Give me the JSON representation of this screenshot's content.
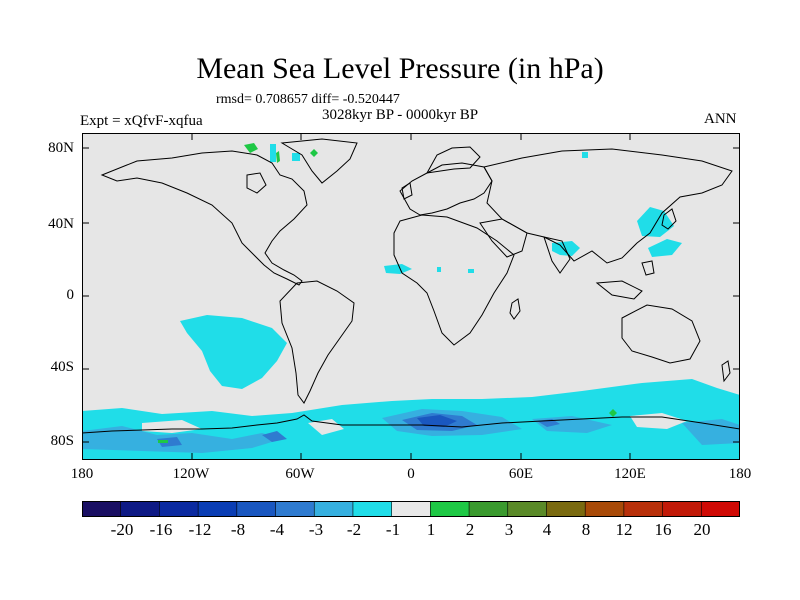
{
  "title": "Mean Sea Level Pressure (in hPa)",
  "stats": "rmsd= 0.708657 diff= -0.520447",
  "period": "3028kyr BP - 0000kyr BP",
  "experiment": "Expt = xQfvF-xqfua",
  "season": "ANN",
  "lat_labels": [
    "80N",
    "40N",
    "0",
    "40S",
    "80S"
  ],
  "lon_labels": [
    "180",
    "120W",
    "60W",
    "0",
    "60E",
    "120E",
    "180"
  ],
  "colorbar": {
    "labels": [
      "-20",
      "-16",
      "-12",
      "-8",
      "-4",
      "-3",
      "-2",
      "-1",
      "1",
      "2",
      "3",
      "4",
      "8",
      "12",
      "16",
      "20"
    ],
    "colors": [
      "#1a0f63",
      "#0e1a85",
      "#0b2aa0",
      "#0a3db4",
      "#1a57c0",
      "#2f7bd0",
      "#36b0e0",
      "#20dde8",
      "#e8e8e8",
      "#1ec845",
      "#3a9a2e",
      "#5a8a28",
      "#7a6a10",
      "#a84a08",
      "#b8300a",
      "#c21a08",
      "#d00a05"
    ]
  },
  "map_colors": {
    "background": "#e6e6e6",
    "anomaly_minus_1_to_minus_2": "#20dde8",
    "anomaly_minus_2_to_minus_3": "#36b0e0",
    "anomaly_minus_3_to_minus_4": "#2f7bd0",
    "anomaly_minus_4_to_minus_8": "#1a57c0",
    "anomaly_minus_8_to_minus_12": "#0a3db4",
    "anomaly_plus_1_to_plus_2": "#1ec845",
    "coastline": "#000000"
  }
}
